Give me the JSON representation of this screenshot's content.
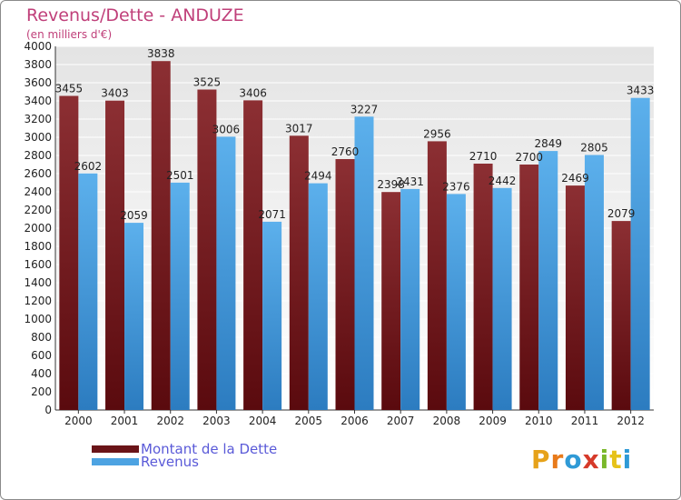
{
  "header": {
    "title": "Revenus/Dette - ANDUZE",
    "subtitle": "(en milliers d'€)"
  },
  "legend": {
    "dette_label": "Montant de la Dette",
    "revenus_label": "Revenus"
  },
  "logo": {
    "text": "Proxiti",
    "letters": [
      "P",
      "r",
      "o",
      "x",
      "i",
      "t",
      "i"
    ],
    "colors": [
      "#e6a21a",
      "#e87a1a",
      "#2f9ad6",
      "#d63a2a",
      "#7ab82a",
      "#e6c21a",
      "#2f9ad6"
    ]
  },
  "colors": {
    "dette": "#7a1f24",
    "revenus": "#4da3e2",
    "background_top": "#e6e6e6",
    "background_bottom": "#ffffff",
    "grid": "#ffffff",
    "title": "#c0407a",
    "legend_text": "#5a5ad8"
  },
  "chart_data": {
    "type": "bar",
    "title": "Revenus/Dette - ANDUZE",
    "subtitle": "(en milliers d'€)",
    "xlabel": "",
    "ylabel": "",
    "categories": [
      "2000",
      "2001",
      "2002",
      "2003",
      "2004",
      "2005",
      "2006",
      "2007",
      "2008",
      "2009",
      "2010",
      "2011",
      "2012"
    ],
    "series": [
      {
        "name": "Montant de la Dette",
        "values": [
          3455,
          3403,
          3838,
          3525,
          3406,
          3017,
          2760,
          2398,
          2956,
          2710,
          2700,
          2469,
          2079
        ]
      },
      {
        "name": "Revenus",
        "values": [
          2602,
          2059,
          2501,
          3006,
          2071,
          2494,
          3227,
          2431,
          2376,
          2442,
          2849,
          2805,
          3433
        ]
      }
    ],
    "ylim": [
      0,
      4000
    ],
    "yticks": [
      0,
      200,
      400,
      600,
      800,
      1000,
      1200,
      1400,
      1600,
      1800,
      2000,
      2200,
      2400,
      2600,
      2800,
      3000,
      3200,
      3400,
      3600,
      3800,
      4000
    ],
    "grid": true,
    "legend_position": "bottom-left"
  }
}
